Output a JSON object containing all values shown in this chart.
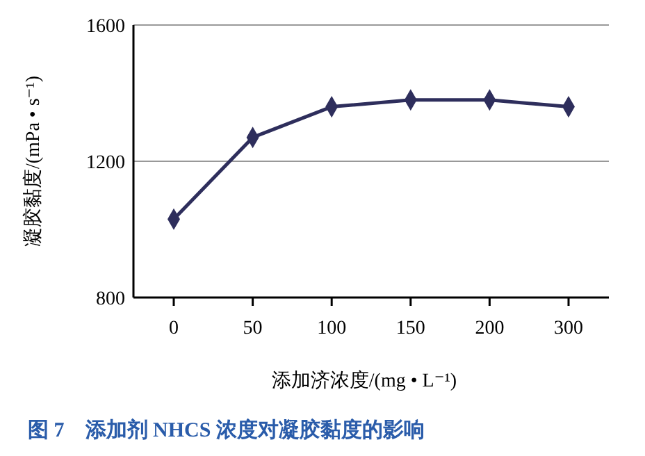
{
  "chart_data": {
    "type": "line",
    "title": "图 7　添加剂 NHCS 浓度对凝胶黏度的影响",
    "xlabel": "添加济浓度/(mg • L⁻¹)",
    "ylabel": "凝胶黏度/(mPa • s⁻¹)",
    "categories": [
      "0",
      "50",
      "100",
      "150",
      "200",
      "300"
    ],
    "series": [
      {
        "color": "#2e2e5c",
        "values": [
          1030,
          1270,
          1360,
          1380,
          1380,
          1360
        ]
      }
    ],
    "ylim": [
      800,
      1600
    ],
    "yticks": [
      800,
      1200,
      1600
    ],
    "grid": "y",
    "marker": "diamond"
  }
}
